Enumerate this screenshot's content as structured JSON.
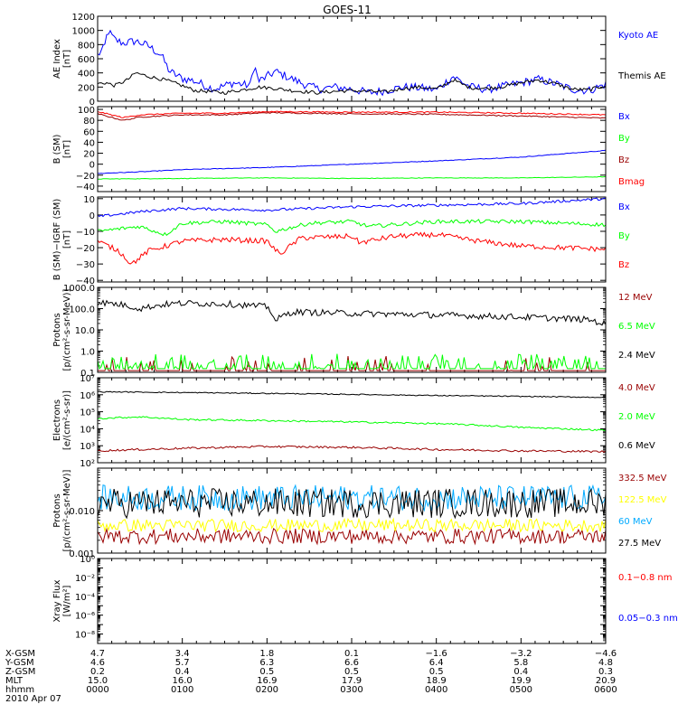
{
  "title": "GOES-11",
  "date_label": "2010 Apr 07",
  "colors": {
    "black": "#000000",
    "blue": "#0000ff",
    "green": "#00ff00",
    "red": "#ff0000",
    "darkred": "#990000",
    "cyan": "#00aaff",
    "yellow": "#ffff00"
  },
  "chart_data": [
    {
      "id": "ae",
      "type": "line",
      "ylabel": [
        "AE Index",
        "[nT]"
      ],
      "ylim": [
        0,
        1200
      ],
      "scale": "linear",
      "yticks": [
        0,
        200,
        400,
        600,
        800,
        1000,
        1200
      ],
      "ytick_labels": [
        "0",
        "200",
        "400",
        "600",
        "800",
        "1000",
        "1200"
      ],
      "series": [
        {
          "name": "Kyoto AE",
          "color": "#0000ff",
          "keypoints": [
            [
              0,
              650
            ],
            [
              0.08,
              750
            ],
            [
              0.12,
              1000
            ],
            [
              0.2,
              870
            ],
            [
              0.3,
              820
            ],
            [
              0.45,
              850
            ],
            [
              0.6,
              780
            ],
            [
              0.75,
              650
            ],
            [
              0.85,
              420
            ],
            [
              1,
              320
            ],
            [
              1.1,
              300
            ],
            [
              1.2,
              260
            ],
            [
              1.3,
              200
            ],
            [
              1.4,
              180
            ],
            [
              1.5,
              220
            ],
            [
              1.6,
              260
            ],
            [
              1.8,
              220
            ],
            [
              1.85,
              520
            ],
            [
              1.9,
              280
            ],
            [
              2.1,
              420
            ],
            [
              2.4,
              260
            ],
            [
              2.6,
              170
            ],
            [
              2.8,
              200
            ],
            [
              3,
              170
            ],
            [
              3.2,
              120
            ],
            [
              3.4,
              150
            ],
            [
              3.6,
              200
            ],
            [
              3.8,
              190
            ],
            [
              4,
              160
            ],
            [
              4.2,
              350
            ],
            [
              4.4,
              200
            ],
            [
              4.6,
              170
            ],
            [
              4.8,
              210
            ],
            [
              5,
              260
            ],
            [
              5.2,
              310
            ],
            [
              5.4,
              250
            ],
            [
              5.6,
              170
            ],
            [
              5.8,
              150
            ],
            [
              6,
              240
            ]
          ],
          "noise": 60
        },
        {
          "name": "Themis AE",
          "color": "#000000",
          "keypoints": [
            [
              0,
              250
            ],
            [
              0.1,
              260
            ],
            [
              0.2,
              220
            ],
            [
              0.35,
              300
            ],
            [
              0.45,
              400
            ],
            [
              0.6,
              350
            ],
            [
              0.8,
              300
            ],
            [
              1,
              220
            ],
            [
              1.15,
              150
            ],
            [
              1.3,
              140
            ],
            [
              1.5,
              120
            ],
            [
              1.7,
              160
            ],
            [
              1.9,
              200
            ],
            [
              2.1,
              180
            ],
            [
              2.3,
              150
            ],
            [
              2.6,
              120
            ],
            [
              2.8,
              140
            ],
            [
              3,
              150
            ],
            [
              3.2,
              140
            ],
            [
              3.4,
              130
            ],
            [
              3.6,
              180
            ],
            [
              3.8,
              200
            ],
            [
              4,
              170
            ],
            [
              4.2,
              300
            ],
            [
              4.4,
              190
            ],
            [
              4.6,
              180
            ],
            [
              4.8,
              210
            ],
            [
              5,
              260
            ],
            [
              5.2,
              300
            ],
            [
              5.4,
              250
            ],
            [
              5.6,
              170
            ],
            [
              5.8,
              160
            ],
            [
              6,
              220
            ]
          ],
          "noise": 25
        }
      ]
    },
    {
      "id": "bsm",
      "type": "line",
      "ylabel": [
        "B (SM)",
        "[nT]"
      ],
      "ylim": [
        -50,
        105
      ],
      "scale": "linear",
      "yticks": [
        -40,
        -20,
        0,
        20,
        40,
        60,
        80,
        100
      ],
      "ytick_labels": [
        "−40",
        "−20",
        "0",
        "20",
        "40",
        "60",
        "80",
        "100"
      ],
      "series": [
        {
          "name": "Bx",
          "color": "#0000ff",
          "keypoints": [
            [
              0,
              -17
            ],
            [
              0.5,
              -14
            ],
            [
              1,
              -10
            ],
            [
              2,
              -6
            ],
            [
              3,
              0
            ],
            [
              4,
              6
            ],
            [
              5,
              13
            ],
            [
              6,
              25
            ]
          ],
          "noise": 0.6
        },
        {
          "name": "By",
          "color": "#00ff00",
          "keypoints": [
            [
              0,
              -27
            ],
            [
              1,
              -26
            ],
            [
              2,
              -25
            ],
            [
              3,
              -26
            ],
            [
              4,
              -25
            ],
            [
              5,
              -25
            ],
            [
              6,
              -23
            ]
          ],
          "noise": 0.5
        },
        {
          "name": "Bz",
          "color": "#990000",
          "keypoints": [
            [
              0,
              92
            ],
            [
              0.3,
              80
            ],
            [
              0.5,
              86
            ],
            [
              1,
              90
            ],
            [
              1.5,
              90
            ],
            [
              2,
              94
            ],
            [
              3,
              92
            ],
            [
              4,
              91
            ],
            [
              5,
              88
            ],
            [
              6,
              84
            ]
          ],
          "noise": 1
        },
        {
          "name": "Bmag",
          "color": "#ff0000",
          "keypoints": [
            [
              0,
              96
            ],
            [
              0.3,
              85
            ],
            [
              0.5,
              90
            ],
            [
              1,
              93
            ],
            [
              1.5,
              93
            ],
            [
              2,
              96
            ],
            [
              3,
              95
            ],
            [
              4,
              95
            ],
            [
              5,
              93
            ],
            [
              6,
              90
            ]
          ],
          "noise": 1
        }
      ]
    },
    {
      "id": "bigrf",
      "type": "line",
      "ylabel": [
        "B (SM)−IGRF (SM)",
        "[nT]"
      ],
      "ylim": [
        -41,
        11
      ],
      "scale": "linear",
      "yticks": [
        -40,
        -30,
        -20,
        -10,
        0,
        10
      ],
      "ytick_labels": [
        "−40",
        "−30",
        "−20",
        "−10",
        "0",
        "10"
      ],
      "series": [
        {
          "name": "Bx",
          "color": "#0000ff",
          "keypoints": [
            [
              0,
              -1
            ],
            [
              0.5,
              2
            ],
            [
              1,
              4
            ],
            [
              2,
              3
            ],
            [
              3,
              5
            ],
            [
              4,
              6
            ],
            [
              5,
              7
            ],
            [
              6,
              10
            ]
          ],
          "noise": 0.8
        },
        {
          "name": "By",
          "color": "#00ff00",
          "keypoints": [
            [
              0,
              -10
            ],
            [
              0.5,
              -7
            ],
            [
              0.8,
              -12
            ],
            [
              1,
              -5
            ],
            [
              1.5,
              -4
            ],
            [
              2,
              -6
            ],
            [
              2.1,
              -10
            ],
            [
              2.5,
              -5
            ],
            [
              3,
              -4
            ],
            [
              3.2,
              -7
            ],
            [
              4,
              -4
            ],
            [
              5,
              -4
            ],
            [
              6,
              -6
            ]
          ],
          "noise": 1.2
        },
        {
          "name": "Bz",
          "color": "#ff0000",
          "keypoints": [
            [
              0,
              -16
            ],
            [
              0.25,
              -22
            ],
            [
              0.4,
              -30
            ],
            [
              0.6,
              -22
            ],
            [
              1,
              -16
            ],
            [
              1.5,
              -15
            ],
            [
              2,
              -16
            ],
            [
              2.15,
              -24
            ],
            [
              2.4,
              -14
            ],
            [
              3,
              -13
            ],
            [
              3.1,
              -17
            ],
            [
              3.5,
              -13
            ],
            [
              4,
              -12
            ],
            [
              4.5,
              -16
            ],
            [
              5,
              -19
            ],
            [
              5.5,
              -20
            ],
            [
              6,
              -21
            ]
          ],
          "noise": 1.6
        }
      ]
    },
    {
      "id": "protons_low",
      "type": "line",
      "ylabel": [
        "Protons",
        "[p/(cm²-s-sr-MeV)]"
      ],
      "ylim": [
        0.1,
        1000
      ],
      "scale": "log",
      "yticks": [
        0.1,
        1,
        10,
        100,
        1000
      ],
      "ytick_labels": [
        "0.1",
        "1.0",
        "10.0",
        "100.0",
        "1000.0"
      ],
      "series": [
        {
          "name": "12 MeV",
          "color": "#990000",
          "keypoints": [
            [
              0,
              0.12
            ],
            [
              6,
              0.12
            ]
          ],
          "noise": 0,
          "spikes": 0.15
        },
        {
          "name": "6.5 MeV",
          "color": "#00ff00",
          "keypoints": [
            [
              0,
              0.15
            ],
            [
              6,
              0.15
            ]
          ],
          "noise": 0,
          "spikes": 0.4
        },
        {
          "name": "2.4 MeV",
          "color": "#000000",
          "keypoints": [
            [
              0,
              200
            ],
            [
              0.3,
              150
            ],
            [
              0.5,
              100
            ],
            [
              0.8,
              160
            ],
            [
              1,
              180
            ],
            [
              1.5,
              170
            ],
            [
              2,
              120
            ],
            [
              2.1,
              25
            ],
            [
              2.3,
              70
            ],
            [
              3,
              60
            ],
            [
              4,
              50
            ],
            [
              5,
              40
            ],
            [
              5.8,
              30
            ],
            [
              6,
              18
            ]
          ],
          "noise": 0.15
        }
      ]
    },
    {
      "id": "electrons",
      "type": "line",
      "ylabel": [
        "Electrons",
        "[e/(cm²-s-sr)]"
      ],
      "ylim": [
        100,
        10000000
      ],
      "scale": "log",
      "yticks": [
        100,
        1000,
        10000,
        100000,
        1000000,
        10000000
      ],
      "ytick_labels": [
        "10²",
        "10³",
        "10⁴",
        "10⁵",
        "10⁶",
        "10⁷"
      ],
      "series": [
        {
          "name": "4.0 MeV",
          "color": "#990000",
          "keypoints": [
            [
              0,
              500
            ],
            [
              1,
              700
            ],
            [
              2,
              900
            ],
            [
              3,
              800
            ],
            [
              4,
              600
            ],
            [
              5,
              500
            ],
            [
              6,
              450
            ]
          ],
          "noise": 0.06
        },
        {
          "name": "2.0 MeV",
          "color": "#00ff00",
          "keypoints": [
            [
              0,
              40000
            ],
            [
              0.5,
              50000
            ],
            [
              1,
              35000
            ],
            [
              2,
              30000
            ],
            [
              3,
              25000
            ],
            [
              4,
              20000
            ],
            [
              5,
              12000
            ],
            [
              6,
              8000
            ]
          ],
          "noise": 0.05
        },
        {
          "name": "0.6 MeV",
          "color": "#000000",
          "keypoints": [
            [
              0,
              1500000
            ],
            [
              2,
              1200000
            ],
            [
              4,
              900000
            ],
            [
              6,
              700000
            ]
          ],
          "noise": 0.03
        }
      ]
    },
    {
      "id": "protons_high",
      "type": "line",
      "ylabel": [
        "Protons",
        "[p/(cm²-s-sr-MeV)]"
      ],
      "ylim": [
        0.001,
        0.1
      ],
      "scale": "log",
      "yticks": [
        0.001,
        0.01
      ],
      "ytick_labels": [
        "0.001",
        "0.010"
      ],
      "series": [
        {
          "name": "332.5 MeV",
          "color": "#990000",
          "keypoints": [
            [
              0,
              0.0025
            ],
            [
              6,
              0.0025
            ]
          ],
          "noise": 0.18
        },
        {
          "name": "122.5 MeV",
          "color": "#ffff00",
          "keypoints": [
            [
              0,
              0.0045
            ],
            [
              6,
              0.0045
            ]
          ],
          "noise": 0.15
        },
        {
          "name": "60 MeV",
          "color": "#00aaff",
          "keypoints": [
            [
              0,
              0.02
            ],
            [
              6,
              0.02
            ]
          ],
          "noise": 0.3
        },
        {
          "name": "27.5 MeV",
          "color": "#000000",
          "keypoints": [
            [
              0,
              0.015
            ],
            [
              6,
              0.015
            ]
          ],
          "noise": 0.35
        }
      ]
    },
    {
      "id": "xray",
      "type": "line",
      "ylabel": [
        "Xray  Flux",
        "[W/m²]"
      ],
      "ylim": [
        1e-09,
        1
      ],
      "scale": "log",
      "yticks": [
        1e-09,
        1e-08,
        1e-07,
        1e-06,
        1e-05,
        0.0001,
        0.001,
        0.01,
        0.1,
        1
      ],
      "ytick_labels": [
        "",
        "10⁻⁸",
        "",
        "10⁻⁶",
        "",
        "10⁻⁴",
        "",
        "10⁻²",
        "",
        "10⁰"
      ],
      "series": [
        {
          "name": "0.1−0.8 nm",
          "color": "#ff0000",
          "keypoints": []
        },
        {
          "name": "0.05−0.3 nm",
          "color": "#0000ff",
          "keypoints": []
        }
      ]
    }
  ],
  "xaxis": {
    "range": [
      0,
      6
    ],
    "row_labels": [
      "X-GSM",
      "Y-GSM",
      "Z-GSM",
      "MLT",
      "hhmm"
    ],
    "columns": [
      {
        "x": 0,
        "values": [
          "4.7",
          "4.6",
          "0.2",
          "15.0",
          "0000"
        ]
      },
      {
        "x": 1,
        "values": [
          "3.4",
          "5.7",
          "0.4",
          "16.0",
          "0100"
        ]
      },
      {
        "x": 2,
        "values": [
          "1.8",
          "6.3",
          "0.5",
          "16.9",
          "0200"
        ]
      },
      {
        "x": 3,
        "values": [
          "0.1",
          "6.6",
          "0.5",
          "17.9",
          "0300"
        ]
      },
      {
        "x": 4,
        "values": [
          "−1.6",
          "6.4",
          "0.5",
          "18.9",
          "0400"
        ]
      },
      {
        "x": 5,
        "values": [
          "−3.2",
          "5.8",
          "0.4",
          "19.9",
          "0500"
        ]
      },
      {
        "x": 6,
        "values": [
          "−4.6",
          "4.8",
          "0.3",
          "20.9",
          "0600"
        ]
      }
    ]
  }
}
